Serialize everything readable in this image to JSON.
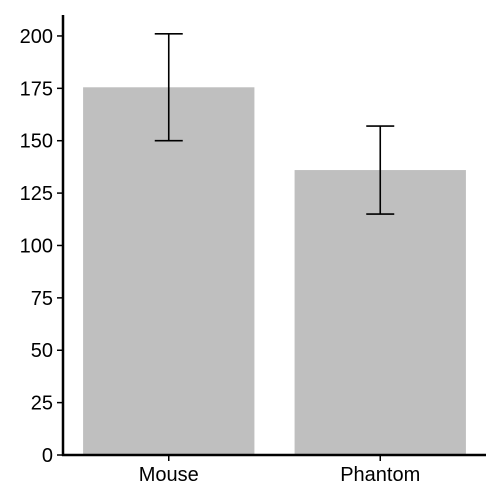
{
  "chart_data": {
    "type": "bar",
    "title": "",
    "xlabel": "",
    "ylabel": "",
    "categories": [
      "Mouse",
      "Phantom"
    ],
    "values": [
      175.5,
      136
    ],
    "error_bars": [
      {
        "low": 150,
        "high": 201
      },
      {
        "low": 115,
        "high": 157
      }
    ],
    "ylim": [
      0,
      210
    ],
    "yticks": [
      0,
      25,
      50,
      75,
      100,
      125,
      150,
      175,
      200
    ],
    "grid": false,
    "legend": "none",
    "bar_color": "#bfbfbf",
    "axis_color": "#000000"
  }
}
